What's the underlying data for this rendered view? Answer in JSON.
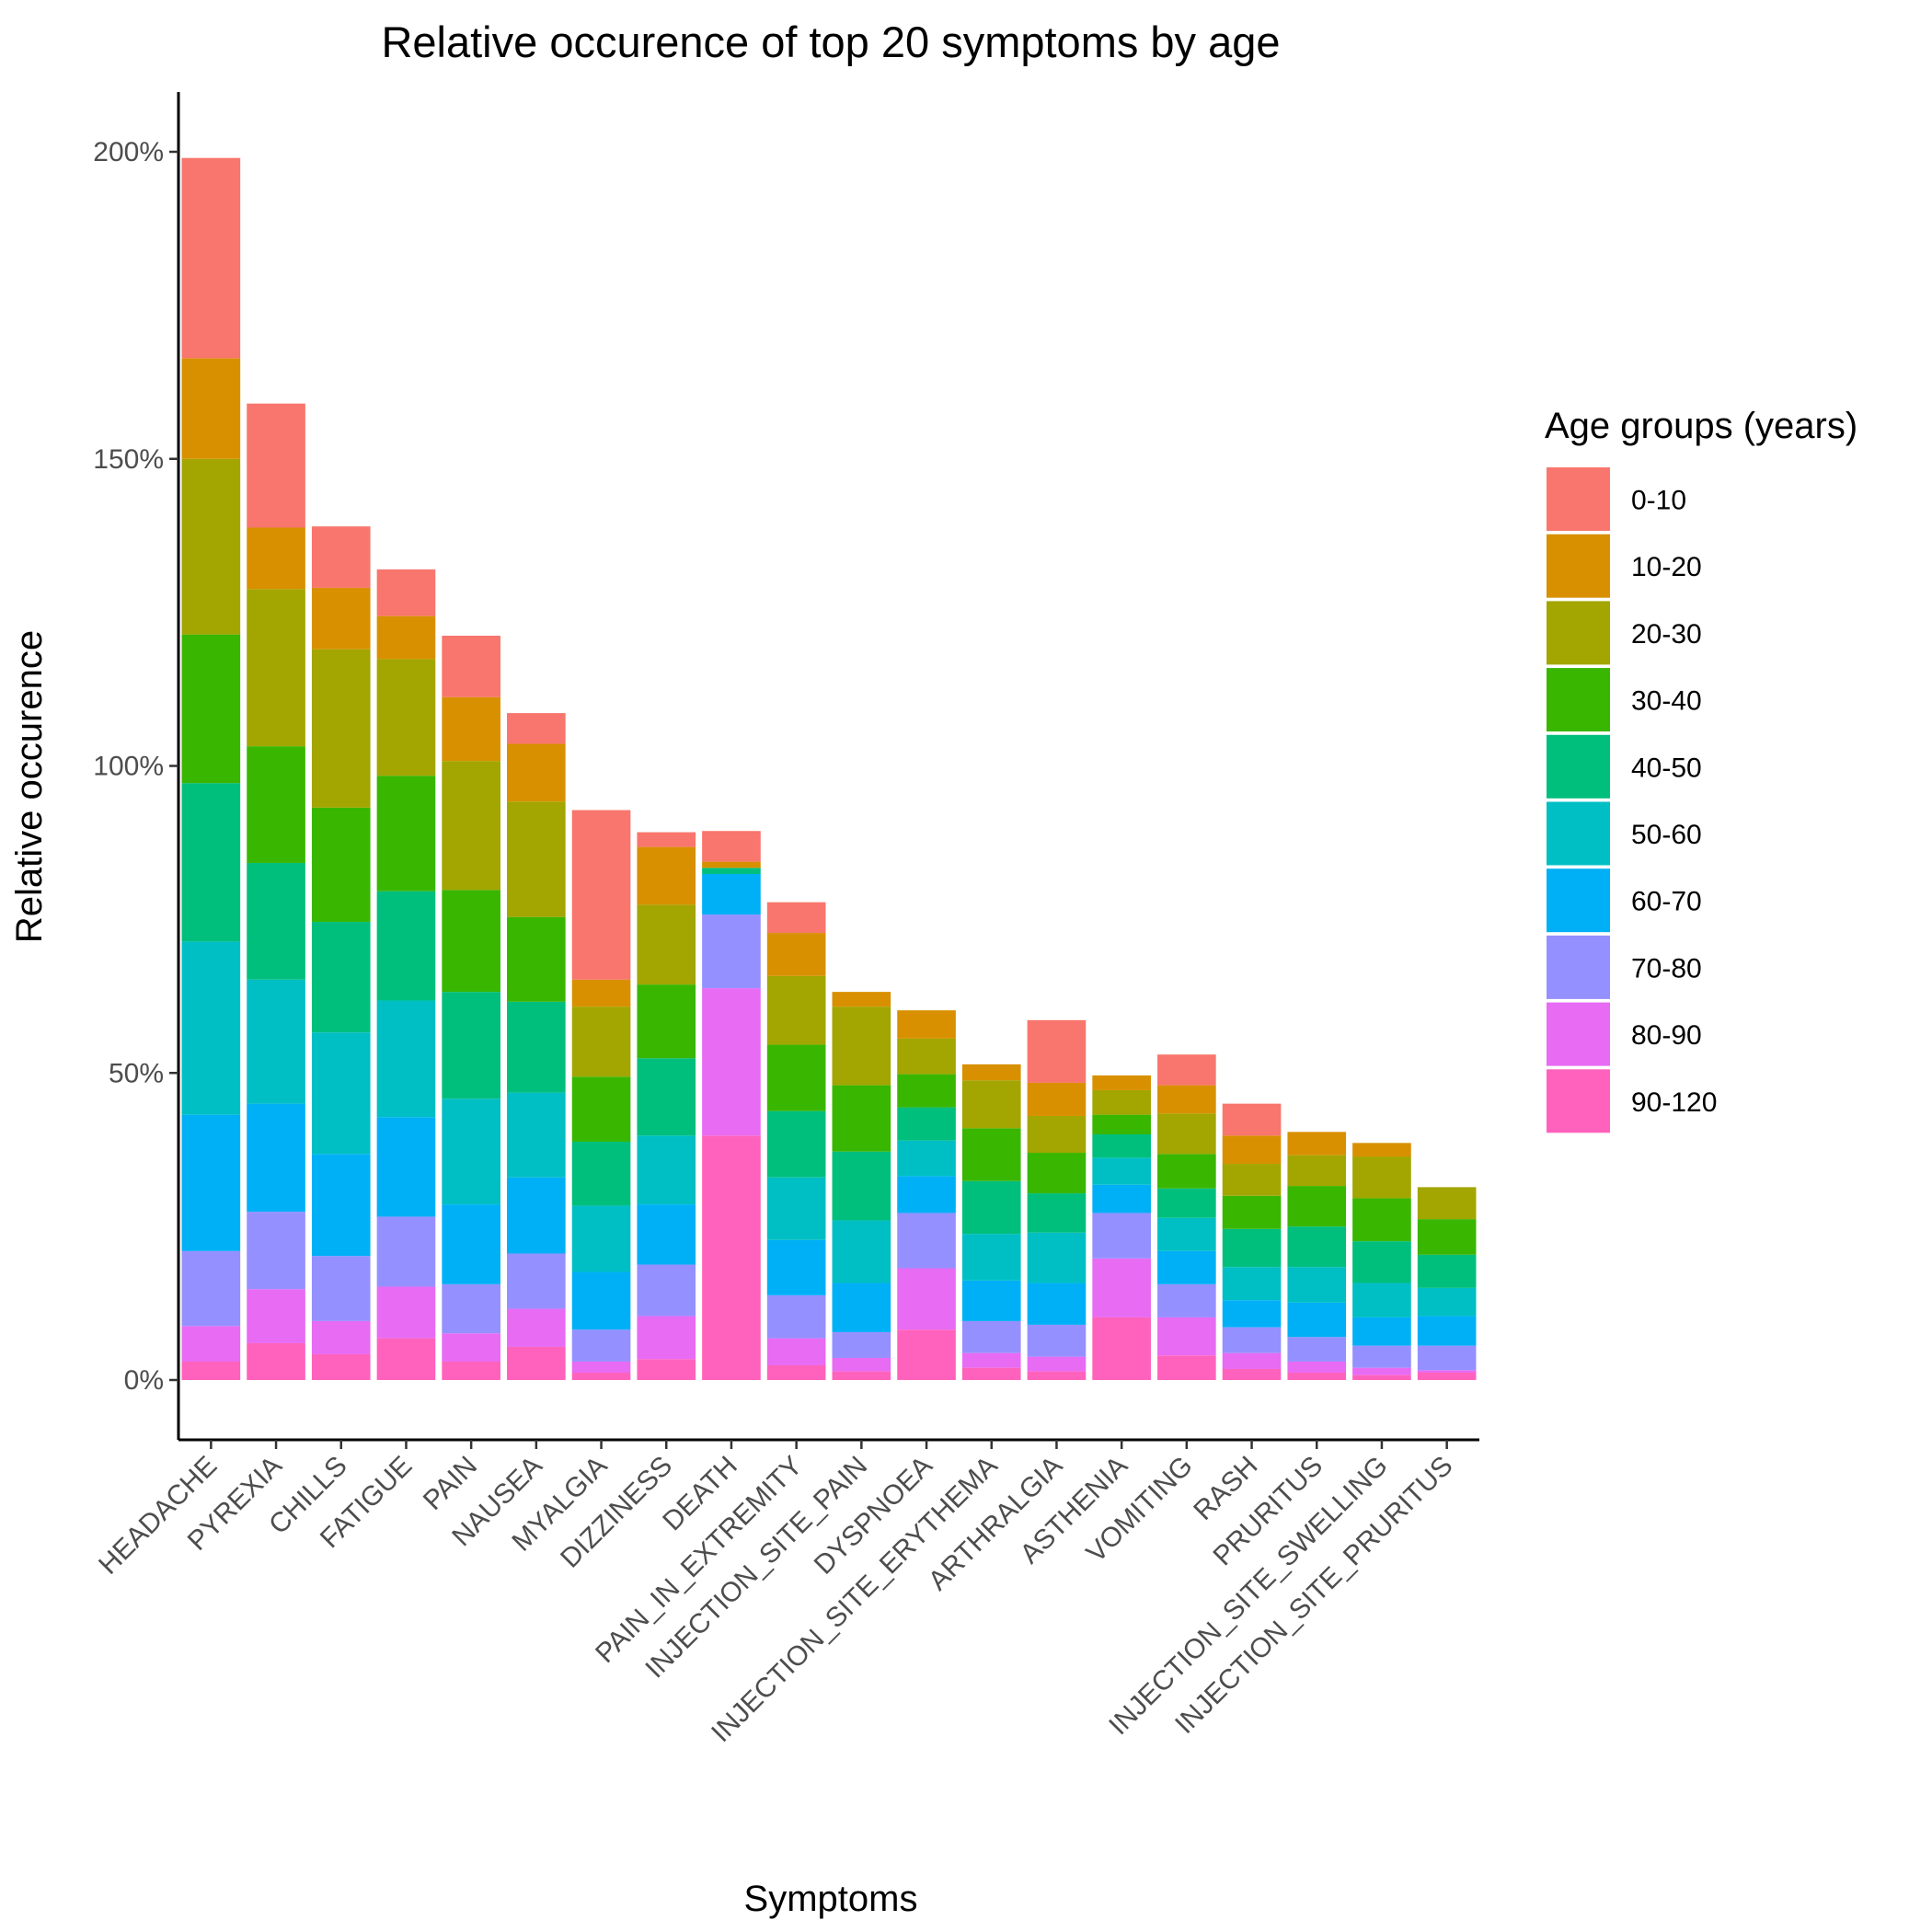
{
  "chart_data": {
    "type": "bar",
    "stacked": true,
    "title": "Relative occurence of top 20 symptoms by age",
    "xlabel": "Symptoms",
    "ylabel": "Relative occurence",
    "y_tick_labels": [
      "0%",
      "50%",
      "100%",
      "150%",
      "200%"
    ],
    "y_ticks": [
      0,
      50,
      100,
      150,
      200
    ],
    "ylim": [
      -10,
      210
    ],
    "grid": false,
    "legend": {
      "title": "Age groups (years)",
      "position": "right"
    },
    "categories": [
      "HEADACHE",
      "PYREXIA",
      "CHILLS",
      "FATIGUE",
      "PAIN",
      "NAUSEA",
      "MYALGIA",
      "DIZZINESS",
      "DEATH",
      "PAIN_IN_EXTREMITY",
      "INJECTION_SITE_PAIN",
      "DYSPNOEA",
      "INJECTION_SITE_ERYTHEMA",
      "ARTHRALGIA",
      "ASTHENIA",
      "VOMITING",
      "RASH",
      "PRURITUS",
      "INJECTION_SITE_SWELLING",
      "INJECTION_SITE_PRURITUS"
    ],
    "series": [
      {
        "name": "0-10",
        "color": "#F8766D",
        "values": [
          32.6,
          20.2,
          10.0,
          7.6,
          10.0,
          5.0,
          27.6,
          2.4,
          5.0,
          5.0,
          0,
          0,
          0,
          10.2,
          0,
          5.0,
          5.2,
          0,
          0,
          0
        ]
      },
      {
        "name": "10-20",
        "color": "#D89000",
        "values": [
          16.4,
          10.0,
          10.0,
          7.0,
          10.4,
          9.4,
          4.4,
          9.4,
          1.0,
          7.0,
          2.4,
          4.6,
          2.6,
          5.4,
          2.4,
          4.6,
          4.6,
          3.8,
          2.2,
          0
        ]
      },
      {
        "name": "20-30",
        "color": "#A3A500",
        "values": [
          28.6,
          25.6,
          25.8,
          19.0,
          21.0,
          18.8,
          11.4,
          13.0,
          0,
          11.2,
          12.8,
          5.8,
          7.8,
          6.0,
          4.0,
          6.6,
          5.2,
          5.0,
          6.8,
          5.2
        ]
      },
      {
        "name": "30-40",
        "color": "#39B600",
        "values": [
          24.2,
          19.0,
          18.6,
          18.8,
          16.6,
          13.8,
          10.6,
          12.0,
          0,
          10.8,
          10.8,
          5.4,
          8.6,
          6.6,
          3.2,
          5.6,
          5.4,
          6.6,
          7.0,
          5.8
        ]
      },
      {
        "name": "40-50",
        "color": "#00BF7D",
        "values": [
          25.8,
          19.0,
          18.0,
          17.8,
          17.4,
          14.8,
          10.4,
          12.6,
          1.0,
          10.8,
          11.2,
          5.4,
          8.6,
          6.4,
          3.8,
          4.8,
          6.2,
          6.6,
          6.8,
          5.4
        ]
      },
      {
        "name": "50-60",
        "color": "#00BFC4",
        "values": [
          28.2,
          20.2,
          19.8,
          19.0,
          17.2,
          13.8,
          10.8,
          11.2,
          0,
          10.2,
          10.2,
          5.8,
          7.6,
          8.2,
          4.4,
          5.4,
          5.4,
          5.8,
          5.6,
          4.6
        ]
      },
      {
        "name": "60-70",
        "color": "#00B0F6",
        "values": [
          22.2,
          17.6,
          16.6,
          16.2,
          13.0,
          12.4,
          9.4,
          9.8,
          6.6,
          9.0,
          8.0,
          6.0,
          6.6,
          6.8,
          4.6,
          5.4,
          4.4,
          5.6,
          4.6,
          4.8
        ]
      },
      {
        "name": "70-80",
        "color": "#9590FF",
        "values": [
          12.2,
          12.6,
          10.6,
          11.4,
          8.0,
          9.0,
          5.2,
          8.4,
          12.0,
          7.0,
          4.2,
          9.0,
          5.2,
          5.2,
          7.4,
          5.4,
          4.2,
          4.0,
          3.6,
          4.0
        ]
      },
      {
        "name": "80-90",
        "color": "#E76BF3",
        "values": [
          5.8,
          8.8,
          5.4,
          8.4,
          4.6,
          6.2,
          1.8,
          7.0,
          24.0,
          4.4,
          2.2,
          10.0,
          2.4,
          2.4,
          9.6,
          6.2,
          2.6,
          1.8,
          1.2,
          0.4
        ]
      },
      {
        "name": "90-120",
        "color": "#FF62BC",
        "values": [
          3.0,
          6.0,
          4.2,
          6.8,
          3.0,
          5.4,
          1.2,
          3.4,
          39.8,
          2.4,
          1.4,
          8.2,
          2.0,
          1.4,
          10.2,
          4.0,
          1.8,
          1.2,
          0.8,
          1.2
        ]
      }
    ]
  }
}
